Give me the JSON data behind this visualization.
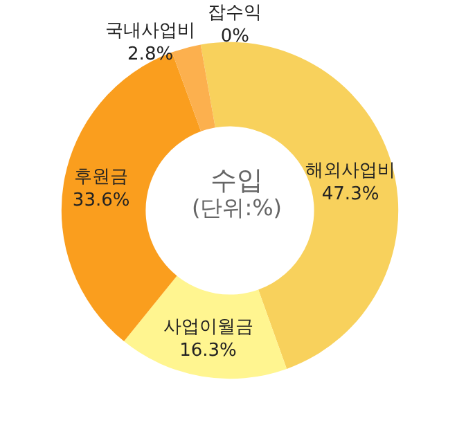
{
  "chart_data": {
    "type": "donut",
    "title": "수입",
    "subtitle": "(단위:%)",
    "categories": [
      "해외사업비",
      "사업이월금",
      "후원금",
      "국내사업비",
      "잡수익"
    ],
    "values": [
      47.3,
      16.3,
      33.6,
      2.8,
      0
    ],
    "value_labels": [
      "47.3%",
      "16.3%",
      "33.6%",
      "2.8%",
      "0%"
    ],
    "colors": [
      "#f8d15c",
      "#fff590",
      "#fa9e1e",
      "#fcb04e",
      "#fff01e"
    ],
    "legend": false
  }
}
